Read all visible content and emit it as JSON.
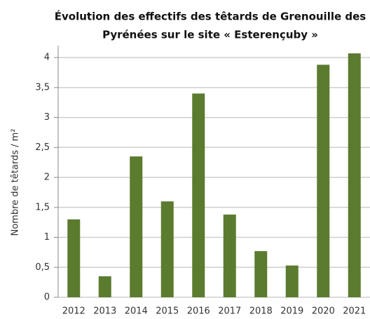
{
  "chart_data": {
    "type": "bar",
    "title": [
      "Évolution des effectifs des têtards de Grenouille des",
      "Pyrénées sur le site « Esterençuby »"
    ],
    "y_label": "Nombre de têtards / m²",
    "categories": [
      "2012",
      "2013",
      "2014",
      "2015",
      "2016",
      "2017",
      "2018",
      "2019",
      "2020",
      "2021"
    ],
    "values": [
      1.3,
      0.35,
      2.35,
      1.6,
      3.4,
      1.38,
      0.77,
      0.53,
      3.88,
      4.07
    ],
    "color": "#5b7b2f",
    "ylim": [
      0,
      4.2
    ],
    "yticks": [
      0,
      {
        "value": 0.5,
        "label": "0,5"
      },
      1,
      {
        "value": 1.5,
        "label": "1,5"
      },
      2,
      {
        "value": 2.5,
        "label": "2,5"
      },
      3,
      {
        "value": 3.5,
        "label": "3,5"
      },
      4
    ],
    "grid": true
  }
}
